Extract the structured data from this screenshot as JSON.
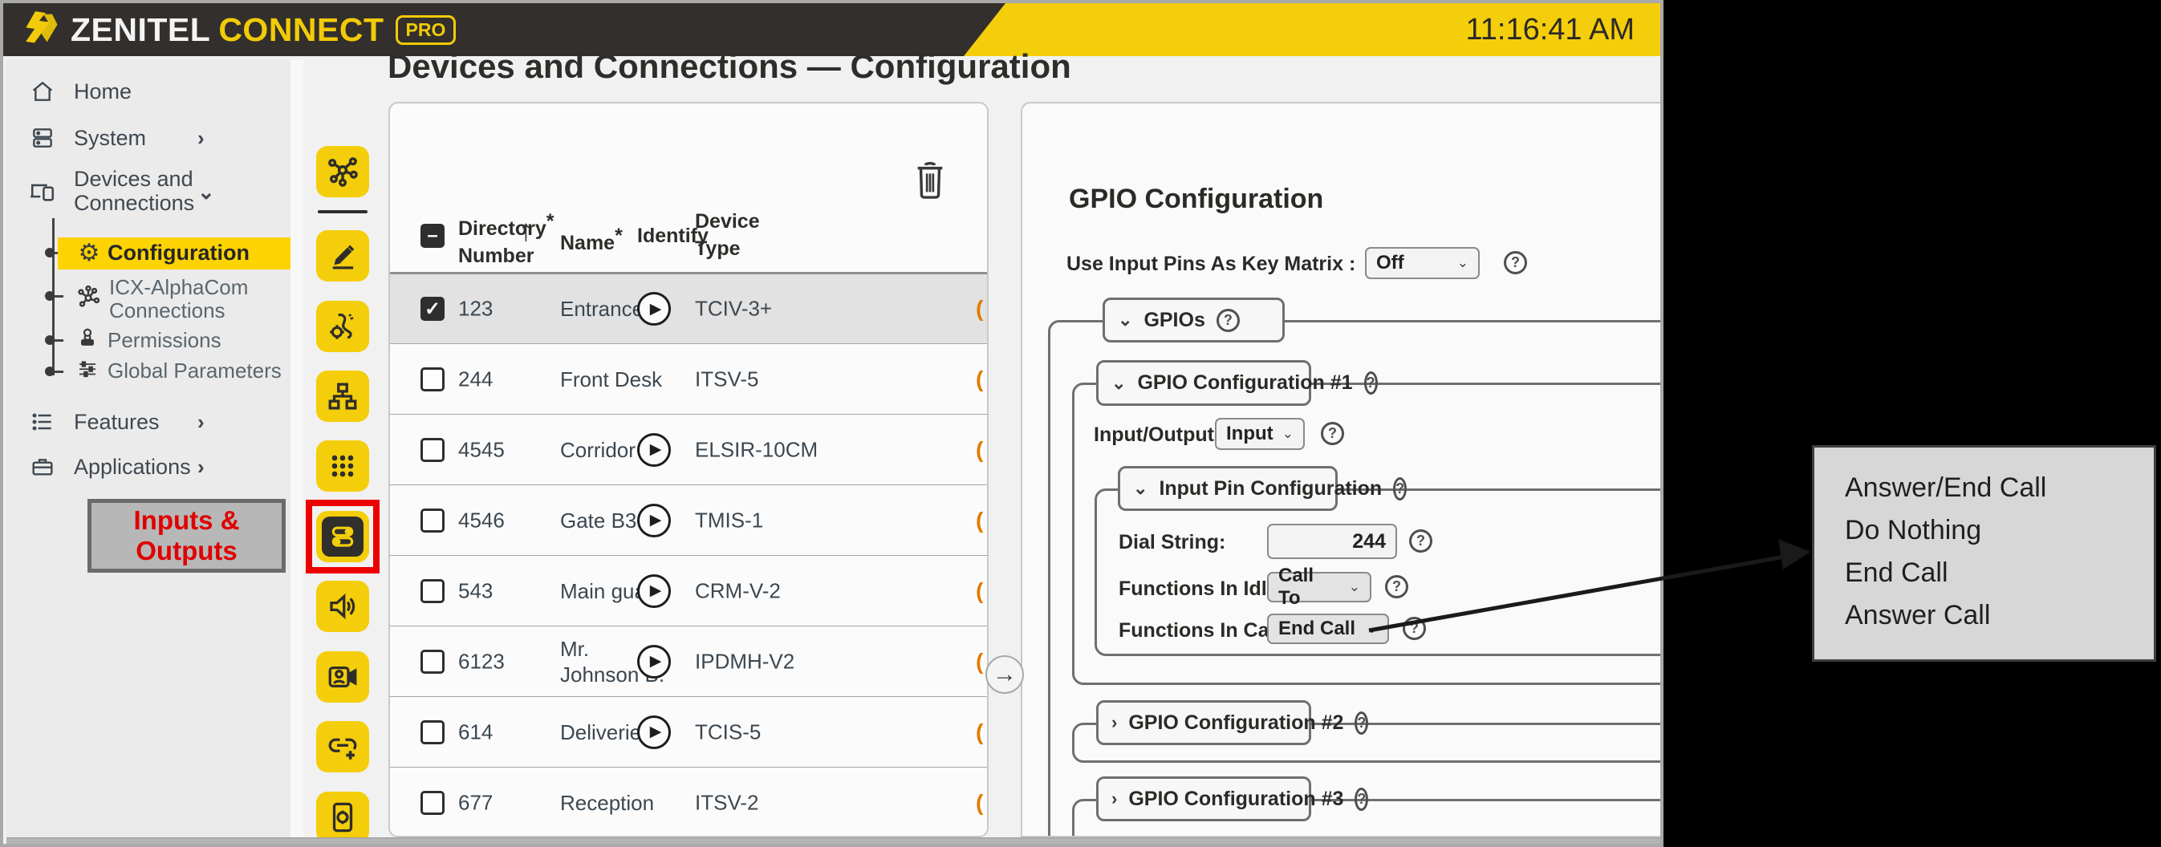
{
  "header": {
    "brand_primary": "ZENITEL",
    "brand_secondary": "CONNECT",
    "brand_badge": "PRO",
    "clock": "11:16:41 AM"
  },
  "sidebar": {
    "items": [
      {
        "label": "Home"
      },
      {
        "label": "System",
        "chevron": "›"
      },
      {
        "label": "Devices and Connections",
        "line1": "Devices and",
        "line2": "Connections",
        "chevron": "⌄"
      },
      {
        "label": "Features",
        "chevron": "›"
      },
      {
        "label": "Applications",
        "chevron": "›"
      }
    ],
    "tree": [
      {
        "label": "Configuration",
        "selected": true
      },
      {
        "label": "ICX-AlphaCom Connections",
        "line1": "ICX-AlphaCom",
        "line2": "Connections"
      },
      {
        "label": "Permissions"
      },
      {
        "label": "Global Parameters"
      }
    ]
  },
  "annotation": {
    "io_label_line1": "Inputs &",
    "io_label_line2": "Outputs",
    "tooltip_options": [
      "Answer/End Call",
      "Do Nothing",
      "End Call",
      "Answer Call"
    ]
  },
  "main": {
    "page_title": "Devices and Connections — Configuration"
  },
  "table": {
    "columns": {
      "directory_line1": "Directory",
      "directory_line2": "Number",
      "name": "Name",
      "identify": "Identify",
      "device_line1": "Device",
      "device_line2": "Type",
      "required_mark": "*",
      "sort_arrow": "↑"
    },
    "rows": [
      {
        "selected": true,
        "checked": true,
        "directory": "123",
        "name": "Entrance",
        "identify": true,
        "device_type": "TCIV-3+"
      },
      {
        "selected": false,
        "checked": false,
        "directory": "244",
        "name": "Front Desk",
        "identify": false,
        "device_type": "ITSV-5"
      },
      {
        "selected": false,
        "checked": false,
        "directory": "4545",
        "name": "Corridor 2A",
        "identify": true,
        "device_type": "ELSIR-10CM"
      },
      {
        "selected": false,
        "checked": false,
        "directory": "4546",
        "name": "Gate B3",
        "identify": true,
        "device_type": "TMIS-1"
      },
      {
        "selected": false,
        "checked": false,
        "directory": "543",
        "name": "Main guard",
        "identify": true,
        "device_type": "CRM-V-2"
      },
      {
        "selected": false,
        "checked": false,
        "directory": "6123",
        "name": "Mr.\nJohnson B.",
        "identify": true,
        "device_type": "IPDMH-V2"
      },
      {
        "selected": false,
        "checked": false,
        "directory": "614",
        "name": "Deliveries",
        "identify": true,
        "device_type": "TCIS-5"
      },
      {
        "selected": false,
        "checked": false,
        "directory": "677",
        "name": "Reception",
        "identify": false,
        "device_type": "ITSV-2"
      }
    ],
    "edge_fragment": "("
  },
  "gpio": {
    "title": "GPIO Configuration",
    "key_matrix_label": "Use Input Pins As Key Matrix :",
    "key_matrix_value": "Off",
    "gpios_group": "GPIOs",
    "config1": {
      "title": "GPIO Configuration #1",
      "io_label": "Input/Output :",
      "io_value": "Input",
      "input_pin_group": "Input Pin Configuration",
      "dial_string_label": "Dial String:",
      "dial_string_value": "244",
      "idle_label": "Functions In Idle State :",
      "idle_value": "Call To",
      "call_label": "Functions In Call State :",
      "call_value": "End Call"
    },
    "config2": {
      "title": "GPIO Configuration #2"
    },
    "config3": {
      "title": "GPIO Configuration #3"
    },
    "help_glyph": "?"
  },
  "colors": {
    "accent_yellow": "#f4ce0b",
    "header_dark": "#332f2c",
    "highlight_red": "#ec0000",
    "annotation_red": "#e00000",
    "tooltip_bg": "#d7d7d7"
  }
}
